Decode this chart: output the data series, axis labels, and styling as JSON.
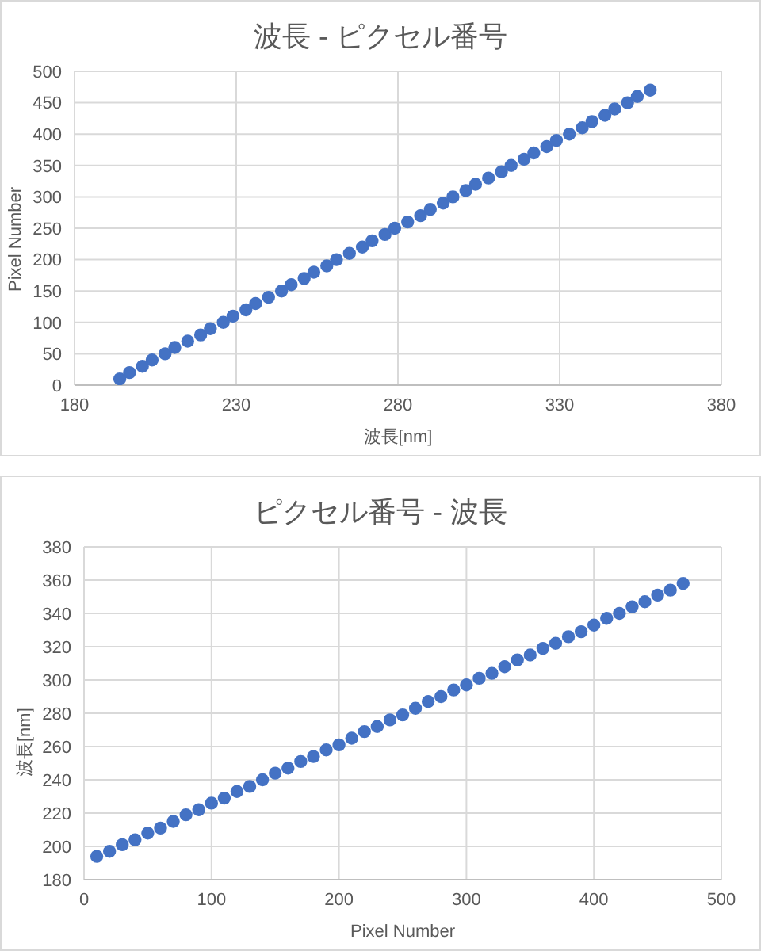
{
  "chart_data": [
    {
      "type": "scatter",
      "title": "波長 - ピクセル番号",
      "xlabel": "波長[nm]",
      "ylabel": "Pixel Number",
      "marker": "circle",
      "grid": true,
      "legend": false,
      "x": [
        194,
        197,
        201,
        204,
        208,
        211,
        215,
        219,
        222,
        226,
        229,
        233,
        236,
        240,
        244,
        247,
        251,
        254,
        258,
        261,
        265,
        269,
        272,
        276,
        279,
        283,
        287,
        290,
        294,
        297,
        301,
        304,
        308,
        312,
        315,
        319,
        322,
        326,
        329,
        333,
        337,
        340,
        344,
        347,
        351,
        354,
        358
      ],
      "series": [
        {
          "color": "#4472c4",
          "values": [
            10,
            20,
            30,
            40,
            50,
            60,
            70,
            80,
            90,
            100,
            110,
            120,
            130,
            140,
            150,
            160,
            170,
            180,
            190,
            200,
            210,
            220,
            230,
            240,
            250,
            260,
            270,
            280,
            290,
            300,
            310,
            320,
            330,
            340,
            350,
            360,
            370,
            380,
            390,
            400,
            410,
            420,
            430,
            440,
            450,
            460,
            470
          ]
        }
      ],
      "xlim": [
        180,
        380
      ],
      "xticks": [
        180,
        230,
        280,
        330,
        380
      ],
      "ylim": [
        0,
        500
      ],
      "yticks": [
        0,
        50,
        100,
        150,
        200,
        250,
        300,
        350,
        400,
        450,
        500
      ]
    },
    {
      "type": "scatter",
      "title": "ピクセル番号 - 波長",
      "xlabel": "Pixel Number",
      "ylabel": "波長[nm]",
      "marker": "circle",
      "grid": true,
      "legend": false,
      "x": [
        10,
        20,
        30,
        40,
        50,
        60,
        70,
        80,
        90,
        100,
        110,
        120,
        130,
        140,
        150,
        160,
        170,
        180,
        190,
        200,
        210,
        220,
        230,
        240,
        250,
        260,
        270,
        280,
        290,
        300,
        310,
        320,
        330,
        340,
        350,
        360,
        370,
        380,
        390,
        400,
        410,
        420,
        430,
        440,
        450,
        460,
        470
      ],
      "series": [
        {
          "color": "#4472c4",
          "values": [
            194,
            197,
            201,
            204,
            208,
            211,
            215,
            219,
            222,
            226,
            229,
            233,
            236,
            240,
            244,
            247,
            251,
            254,
            258,
            261,
            265,
            269,
            272,
            276,
            279,
            283,
            287,
            290,
            294,
            297,
            301,
            304,
            308,
            312,
            315,
            319,
            322,
            326,
            329,
            333,
            337,
            340,
            344,
            347,
            351,
            354,
            358
          ]
        }
      ],
      "xlim": [
        0,
        500
      ],
      "xticks": [
        0,
        100,
        200,
        300,
        400,
        500
      ],
      "ylim": [
        180,
        380
      ],
      "yticks": [
        180,
        200,
        220,
        240,
        260,
        280,
        300,
        320,
        340,
        360,
        380
      ]
    }
  ]
}
